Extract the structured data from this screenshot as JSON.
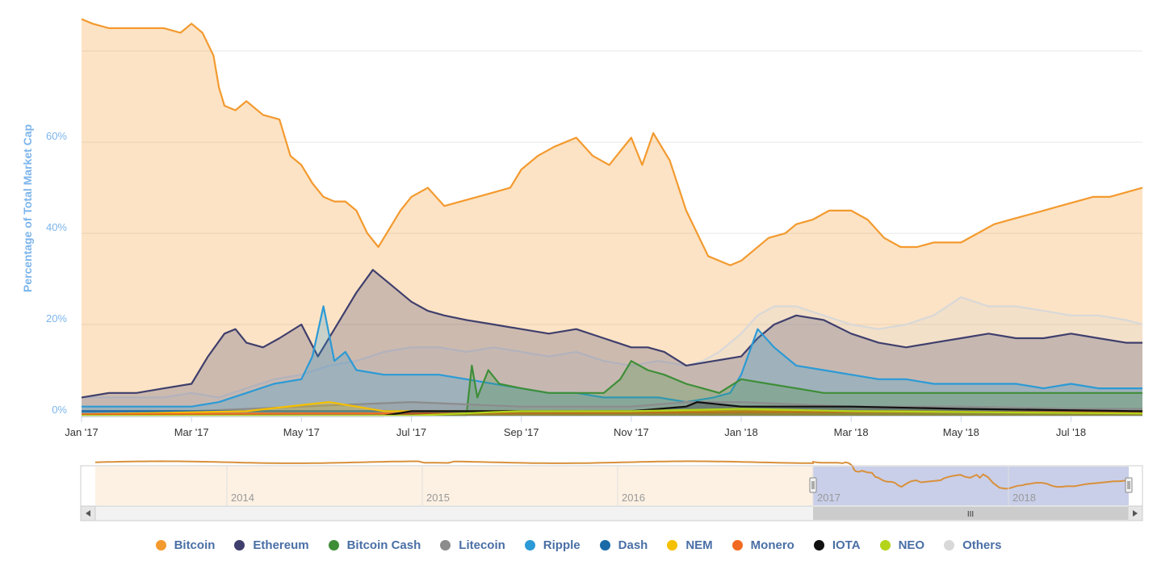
{
  "chart_data": {
    "type": "area",
    "ylabel": "Percentage of Total Market Cap",
    "ylim": [
      0,
      88
    ],
    "yticks": [
      {
        "value": 0,
        "label": "0%"
      },
      {
        "value": 20,
        "label": "20%"
      },
      {
        "value": 40,
        "label": "40%"
      },
      {
        "value": 60,
        "label": "60%"
      }
    ],
    "xlim": [
      0,
      19.3
    ],
    "xticks": [
      {
        "value": 0,
        "label": "Jan '17"
      },
      {
        "value": 2,
        "label": "Mar '17"
      },
      {
        "value": 4,
        "label": "May '17"
      },
      {
        "value": 6,
        "label": "Jul '17"
      },
      {
        "value": 8,
        "label": "Sep '17"
      },
      {
        "value": 10,
        "label": "Nov '17"
      },
      {
        "value": 12,
        "label": "Jan '18"
      },
      {
        "value": 14,
        "label": "Mar '18"
      },
      {
        "value": 16,
        "label": "May '18"
      },
      {
        "value": 18,
        "label": "Jul '18"
      }
    ],
    "grid": true,
    "legend_position": "bottom-center",
    "series": [
      {
        "name": "Bitcoin",
        "color": "#f39a2f",
        "x": [
          0,
          0.2,
          0.5,
          1.0,
          1.5,
          1.8,
          2.0,
          2.2,
          2.4,
          2.5,
          2.6,
          2.8,
          3.0,
          3.3,
          3.6,
          3.8,
          4.0,
          4.2,
          4.4,
          4.6,
          4.8,
          5.0,
          5.2,
          5.4,
          5.6,
          5.8,
          6.0,
          6.3,
          6.6,
          6.9,
          7.2,
          7.5,
          7.8,
          8.0,
          8.3,
          8.6,
          9.0,
          9.3,
          9.6,
          9.8,
          10.0,
          10.2,
          10.4,
          10.7,
          11.0,
          11.2,
          11.4,
          11.6,
          11.8,
          12.0,
          12.2,
          12.5,
          12.8,
          13.0,
          13.3,
          13.6,
          14.0,
          14.3,
          14.6,
          14.9,
          15.2,
          15.5,
          15.8,
          16.0,
          16.3,
          16.6,
          16.9,
          17.2,
          17.5,
          17.8,
          18.1,
          18.4,
          18.7,
          19.0,
          19.3
        ],
        "y": [
          87,
          86,
          85,
          85,
          85,
          84,
          86,
          84,
          79,
          72,
          68,
          67,
          69,
          66,
          65,
          57,
          55,
          51,
          48,
          47,
          47,
          45,
          40,
          37,
          41,
          45,
          48,
          50,
          46,
          47,
          48,
          49,
          50,
          54,
          57,
          59,
          61,
          57,
          55,
          58,
          61,
          55,
          62,
          56,
          45,
          40,
          35,
          34,
          33,
          34,
          36,
          39,
          40,
          42,
          43,
          45,
          45,
          43,
          39,
          37,
          37,
          38,
          38,
          38,
          40,
          42,
          43,
          44,
          45,
          46,
          47,
          48,
          48,
          49,
          50
        ]
      },
      {
        "name": "Others",
        "color": "#d8d8d8",
        "x": [
          0,
          1.0,
          1.5,
          2.0,
          2.5,
          3.0,
          3.5,
          4.0,
          4.5,
          5.0,
          5.5,
          6.0,
          6.5,
          7.0,
          7.5,
          8.0,
          8.5,
          9.0,
          9.5,
          10.0,
          10.5,
          11.0,
          11.3,
          11.6,
          12.0,
          12.3,
          12.6,
          13.0,
          13.5,
          14.0,
          14.5,
          15.0,
          15.5,
          16.0,
          16.5,
          17.0,
          17.5,
          18.0,
          18.5,
          19.0,
          19.3
        ],
        "y": [
          4,
          4,
          4,
          5,
          4,
          6,
          8,
          9,
          11,
          12,
          14,
          15,
          15,
          14,
          15,
          14,
          13,
          14,
          12,
          11,
          12,
          11,
          12,
          14,
          18,
          22,
          24,
          24,
          22,
          20,
          19,
          20,
          22,
          26,
          24,
          24,
          23,
          22,
          22,
          21,
          20
        ]
      },
      {
        "name": "Ethereum",
        "color": "#3f3f6d",
        "x": [
          0,
          0.5,
          1.0,
          1.5,
          2.0,
          2.3,
          2.6,
          2.8,
          3.0,
          3.3,
          3.6,
          4.0,
          4.3,
          4.6,
          5.0,
          5.3,
          5.6,
          6.0,
          6.3,
          6.6,
          7.0,
          7.5,
          8.0,
          8.5,
          9.0,
          9.5,
          10.0,
          10.3,
          10.6,
          11.0,
          11.5,
          12.0,
          12.3,
          12.6,
          13.0,
          13.5,
          14.0,
          14.5,
          15.0,
          15.5,
          16.0,
          16.5,
          17.0,
          17.5,
          18.0,
          18.5,
          19.0,
          19.3
        ],
        "y": [
          4,
          5,
          5,
          6,
          7,
          13,
          18,
          19,
          16,
          15,
          17,
          20,
          13,
          19,
          27,
          32,
          29,
          25,
          23,
          22,
          21,
          20,
          19,
          18,
          19,
          17,
          15,
          15,
          14,
          11,
          12,
          13,
          17,
          20,
          22,
          21,
          18,
          16,
          15,
          16,
          17,
          18,
          17,
          17,
          18,
          17,
          16,
          16
        ]
      },
      {
        "name": "Ripple",
        "color": "#2b9ad6",
        "x": [
          0,
          1.0,
          2.0,
          2.5,
          3.0,
          3.5,
          4.0,
          4.2,
          4.4,
          4.6,
          4.8,
          5.0,
          5.5,
          6.0,
          6.5,
          7.0,
          7.5,
          8.0,
          8.5,
          9.0,
          9.5,
          10.0,
          10.5,
          11.0,
          11.5,
          11.8,
          12.0,
          12.3,
          12.6,
          13.0,
          13.5,
          14.0,
          14.5,
          15.0,
          15.5,
          16.0,
          16.5,
          17.0,
          17.5,
          18.0,
          18.5,
          19.0,
          19.3
        ],
        "y": [
          2,
          2,
          2,
          3,
          5,
          7,
          8,
          13,
          24,
          12,
          14,
          10,
          9,
          9,
          9,
          8,
          7,
          6,
          5,
          5,
          4,
          4,
          4,
          3,
          4,
          5,
          9,
          19,
          15,
          11,
          10,
          9,
          8,
          8,
          7,
          7,
          7,
          7,
          6,
          7,
          6,
          6,
          6
        ]
      },
      {
        "name": "Bitcoin Cash",
        "color": "#3e8e38",
        "x": [
          0,
          7.0,
          7.1,
          7.2,
          7.4,
          7.6,
          8.0,
          8.5,
          9.0,
          9.5,
          9.8,
          10.0,
          10.3,
          10.6,
          11.0,
          11.3,
          11.6,
          12.0,
          12.5,
          13.0,
          13.5,
          14.0,
          15.0,
          16.0,
          17.0,
          18.0,
          19.0,
          19.3
        ],
        "y": [
          0,
          0,
          11,
          4,
          10,
          7,
          6,
          5,
          5,
          5,
          8,
          12,
          10,
          9,
          7,
          6,
          5,
          8,
          7,
          6,
          5,
          5,
          5,
          5,
          5,
          5,
          5,
          5
        ]
      },
      {
        "name": "Litecoin",
        "color": "#8c8c8c",
        "x": [
          0,
          2.0,
          4.0,
          6.0,
          8.0,
          10.0,
          11.0,
          12.0,
          14.0,
          16.0,
          18.0,
          19.3
        ],
        "y": [
          1,
          1,
          2,
          3,
          2,
          2,
          3,
          3,
          2,
          2,
          1.5,
          1.5
        ]
      },
      {
        "name": "Dash",
        "color": "#1a6aa8",
        "x": [
          0,
          3.0,
          6.0,
          9.0,
          12.0,
          15.0,
          19.3
        ],
        "y": [
          1,
          1,
          1,
          1,
          1,
          0.8,
          0.7
        ]
      },
      {
        "name": "NEM",
        "color": "#f5c000",
        "x": [
          0,
          3.0,
          4.5,
          5.0,
          5.5,
          6.0,
          9.0,
          12.0,
          15.0,
          19.3
        ],
        "y": [
          0.3,
          1,
          3,
          2,
          1,
          1,
          1,
          1,
          1,
          0.5
        ]
      },
      {
        "name": "Monero",
        "color": "#f26a21",
        "x": [
          0,
          4.0,
          8.0,
          12.0,
          16.0,
          19.3
        ],
        "y": [
          0.3,
          0.5,
          0.5,
          0.8,
          0.8,
          0.8
        ]
      },
      {
        "name": "IOTA",
        "color": "#111111",
        "x": [
          0,
          5.5,
          6.0,
          8.0,
          10.0,
          11.0,
          11.2,
          12.0,
          14.0,
          16.0,
          19.3
        ],
        "y": [
          0,
          0,
          1,
          1,
          1,
          2,
          3,
          2,
          2,
          1.5,
          1
        ]
      },
      {
        "name": "NEO",
        "color": "#b3d419",
        "x": [
          0,
          6.0,
          7.5,
          8.0,
          10.0,
          12.0,
          14.0,
          16.0,
          19.3
        ],
        "y": [
          0,
          0,
          0.8,
          1,
          1,
          1.5,
          1,
          0.8,
          0.5
        ]
      }
    ],
    "navigator": {
      "ticks": [
        "2014",
        "2015",
        "2016",
        "2017",
        "2018"
      ],
      "scroll_thumb": "III"
    }
  }
}
